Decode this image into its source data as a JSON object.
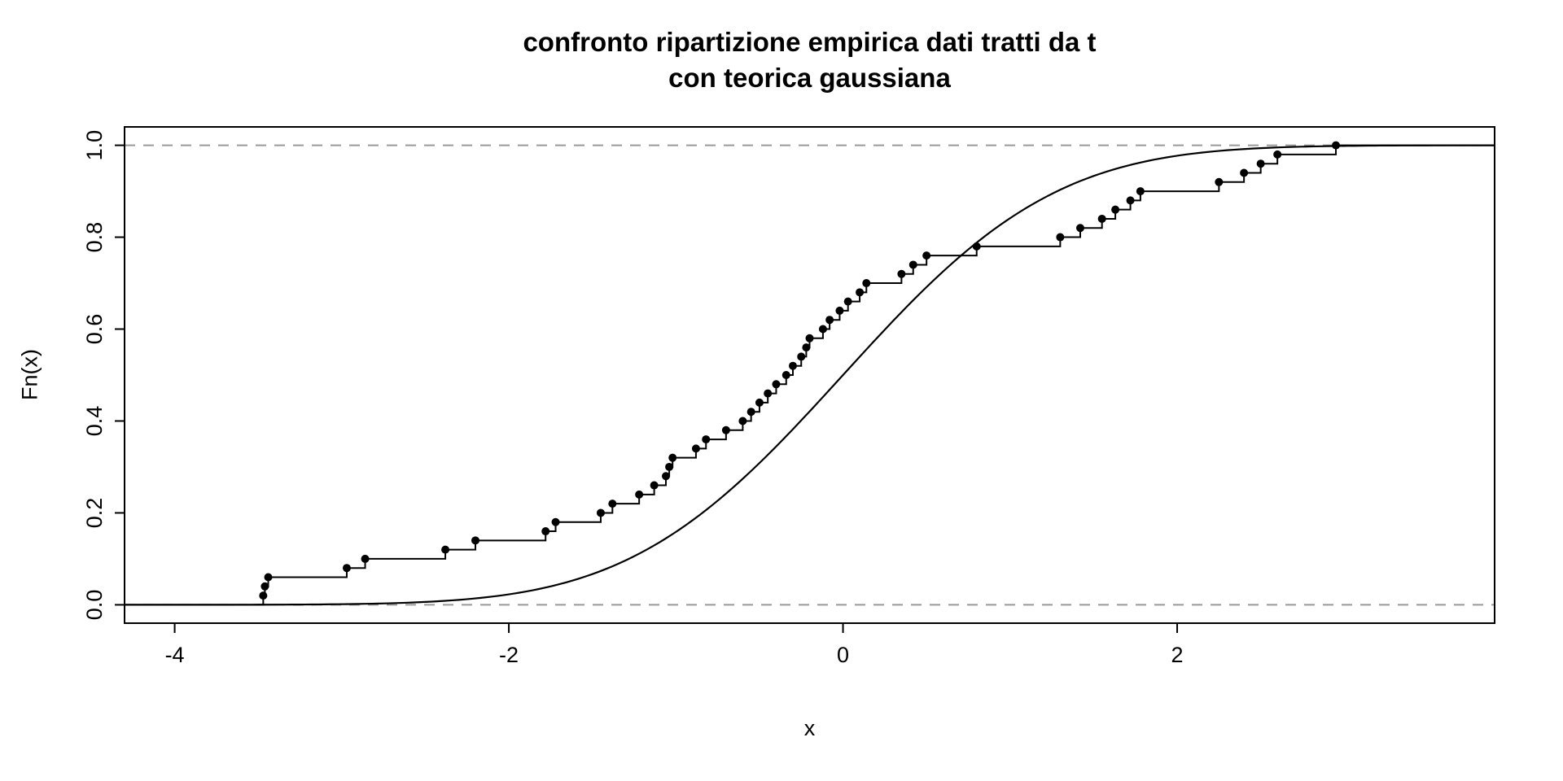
{
  "title": {
    "line1": "confronto ripartizione empirica dati tratti da t",
    "line2": "con teorica gaussiana"
  },
  "axes": {
    "xlabel": "x",
    "ylabel": "Fn(x)"
  },
  "chart_data": {
    "type": "line",
    "title": "confronto ripartizione empirica dati tratti da t con teorica gaussiana",
    "xlabel": "x",
    "ylabel": "Fn(x)",
    "xlim": [
      -4.3,
      3.9
    ],
    "ylim": [
      -0.04,
      1.04
    ],
    "x_ticks": [
      -4,
      -2,
      0,
      2
    ],
    "x_tick_labels": [
      "-4",
      "-2",
      "0",
      "2"
    ],
    "y_ticks": [
      0.0,
      0.2,
      0.4,
      0.6,
      0.8,
      1.0
    ],
    "y_tick_labels": [
      "0.0",
      "0.2",
      "0.4",
      "0.6",
      "0.8",
      "1.0"
    ],
    "grid": false,
    "legend": "none",
    "series": [
      {
        "name": "empirical-ecdf",
        "style": "step-with-points",
        "n": 50,
        "step_size": 0.02,
        "sorted_values": [
          -3.47,
          -3.46,
          -3.44,
          -2.97,
          -2.86,
          -2.38,
          -2.2,
          -1.78,
          -1.72,
          -1.45,
          -1.38,
          -1.22,
          -1.13,
          -1.06,
          -1.04,
          -1.02,
          -0.88,
          -0.82,
          -0.7,
          -0.6,
          -0.55,
          -0.5,
          -0.45,
          -0.4,
          -0.34,
          -0.3,
          -0.25,
          -0.22,
          -0.2,
          -0.12,
          -0.08,
          -0.02,
          0.03,
          0.1,
          0.14,
          0.35,
          0.42,
          0.5,
          0.8,
          1.3,
          1.42,
          1.55,
          1.63,
          1.72,
          1.78,
          2.25,
          2.4,
          2.5,
          2.6,
          2.95
        ],
        "color": "#000000"
      },
      {
        "name": "theoretical-gaussian-cdf",
        "style": "smooth-curve",
        "distribution": "normal",
        "mean": 0,
        "sd": 1,
        "color": "#000000"
      }
    ],
    "reference_lines": {
      "y_values": [
        0,
        1
      ],
      "line_style": "dashed",
      "color": "#999999"
    },
    "colors": {
      "foreground": "#000000",
      "reference": "#999999",
      "background": "#ffffff"
    }
  }
}
